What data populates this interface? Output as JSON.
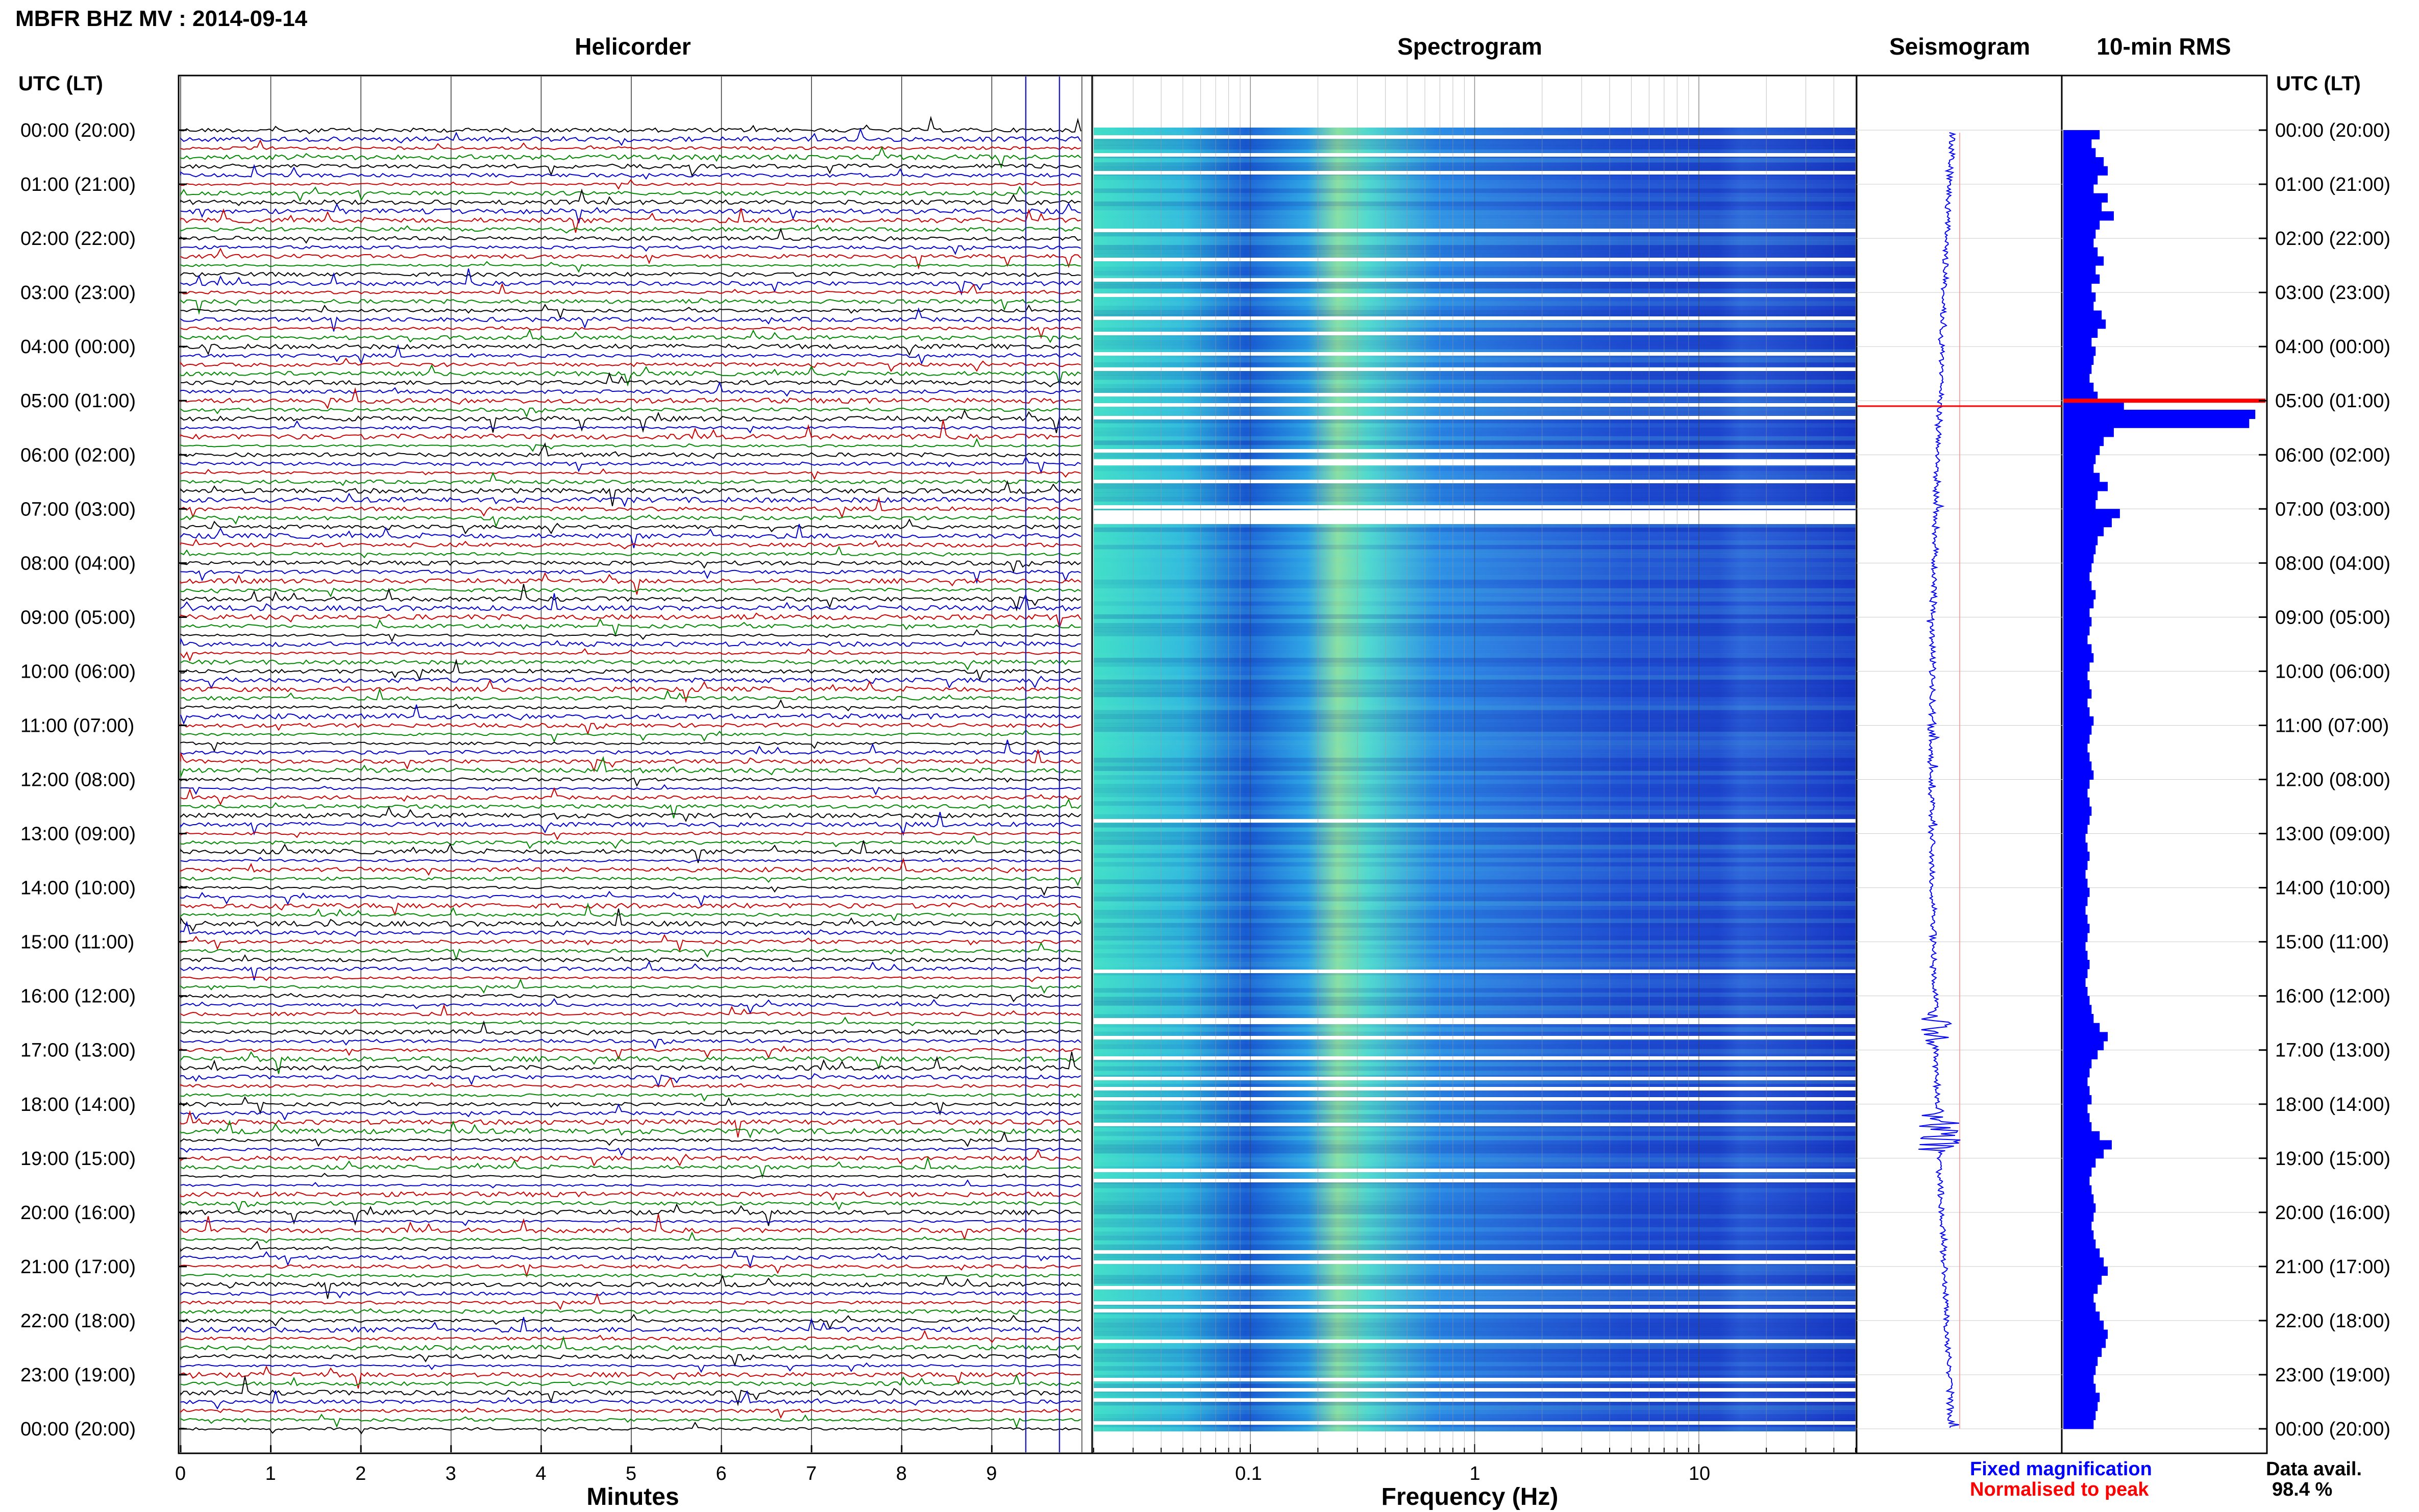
{
  "page_title": "MBFR BHZ MV : 2014-09-14",
  "axis_header_left": "UTC (LT)",
  "axis_header_right": "UTC (LT)",
  "panels": {
    "helicorder": "Helicorder",
    "spectrogram": "Spectrogram",
    "seismogram": "Seismogram",
    "rms": "10-min RMS"
  },
  "hour_labels": [
    "00:00 (20:00)",
    "01:00 (21:00)",
    "02:00 (22:00)",
    "03:00 (23:00)",
    "04:00 (00:00)",
    "05:00 (01:00)",
    "06:00 (02:00)",
    "07:00 (03:00)",
    "08:00 (04:00)",
    "09:00 (05:00)",
    "10:00 (06:00)",
    "11:00 (07:00)",
    "12:00 (08:00)",
    "13:00 (09:00)",
    "14:00 (10:00)",
    "15:00 (11:00)",
    "16:00 (12:00)",
    "17:00 (13:00)",
    "18:00 (14:00)",
    "19:00 (15:00)",
    "20:00 (16:00)",
    "21:00 (17:00)",
    "22:00 (18:00)",
    "23:00 (19:00)",
    "00:00 (20:00)"
  ],
  "legend": {
    "fixed": "Fixed magnification",
    "normalised": "Normalised to peak",
    "data_avail_label": "Data avail.",
    "data_avail_value": "98.4 %"
  },
  "colors": {
    "trace_cycle": [
      "#000000",
      "#0000cc",
      "#cc0000",
      "#008800"
    ],
    "spectro_bg": "#1a3dcc",
    "seis_trace": "#0000ff",
    "rms_bar": "#0000ff",
    "peak_marker": "#ff0000",
    "legend_fixed": "#0000ff",
    "legend_normalised": "#ff0000"
  },
  "chart_data": [
    {
      "type": "line",
      "panel": "helicorder",
      "xlabel": "Minutes",
      "x_ticks": [
        "0",
        "1",
        "2",
        "3",
        "4",
        "5",
        "6",
        "7",
        "8",
        "9"
      ],
      "xlim": [
        0,
        10
      ],
      "rows_per_hour": 6,
      "hours": 24
    },
    {
      "type": "heatmap",
      "panel": "spectrogram",
      "xlabel": "Frequency (Hz)",
      "x_scale": "log",
      "xlim": [
        0.02,
        50
      ],
      "x_ticks": [
        "0.1",
        "1",
        "10"
      ],
      "x_tick_values": [
        0.1,
        1,
        10
      ]
    },
    {
      "type": "line",
      "panel": "seismogram",
      "peak_hour_utc": 5.1
    },
    {
      "type": "bar",
      "panel": "rms",
      "orientation": "horizontal",
      "interval_minutes": 10,
      "peak_hour_utc": 5.0,
      "values": [
        0.18,
        0.14,
        0.16,
        0.2,
        0.22,
        0.17,
        0.15,
        0.22,
        0.19,
        0.25,
        0.18,
        0.16,
        0.15,
        0.17,
        0.2,
        0.16,
        0.18,
        0.14,
        0.16,
        0.15,
        0.19,
        0.21,
        0.17,
        0.14,
        0.16,
        0.15,
        0.14,
        0.13,
        0.15,
        0.17,
        0.3,
        0.95,
        0.92,
        0.25,
        0.2,
        0.18,
        0.16,
        0.15,
        0.18,
        0.22,
        0.17,
        0.16,
        0.28,
        0.24,
        0.2,
        0.17,
        0.16,
        0.15,
        0.14,
        0.13,
        0.14,
        0.16,
        0.15,
        0.13,
        0.14,
        0.13,
        0.12,
        0.14,
        0.15,
        0.13,
        0.12,
        0.13,
        0.14,
        0.12,
        0.13,
        0.15,
        0.14,
        0.13,
        0.12,
        0.13,
        0.14,
        0.15,
        0.13,
        0.12,
        0.13,
        0.14,
        0.13,
        0.12,
        0.11,
        0.12,
        0.13,
        0.12,
        0.11,
        0.12,
        0.13,
        0.12,
        0.11,
        0.12,
        0.13,
        0.12,
        0.11,
        0.12,
        0.13,
        0.12,
        0.11,
        0.12,
        0.13,
        0.14,
        0.15,
        0.18,
        0.22,
        0.2,
        0.17,
        0.14,
        0.13,
        0.12,
        0.13,
        0.14,
        0.12,
        0.13,
        0.14,
        0.18,
        0.24,
        0.2,
        0.16,
        0.14,
        0.13,
        0.14,
        0.15,
        0.16,
        0.15,
        0.14,
        0.15,
        0.16,
        0.18,
        0.2,
        0.22,
        0.19,
        0.17,
        0.15,
        0.16,
        0.18,
        0.2,
        0.22,
        0.21,
        0.19,
        0.17,
        0.16,
        0.15,
        0.16,
        0.18,
        0.17,
        0.16,
        0.15
      ]
    }
  ]
}
